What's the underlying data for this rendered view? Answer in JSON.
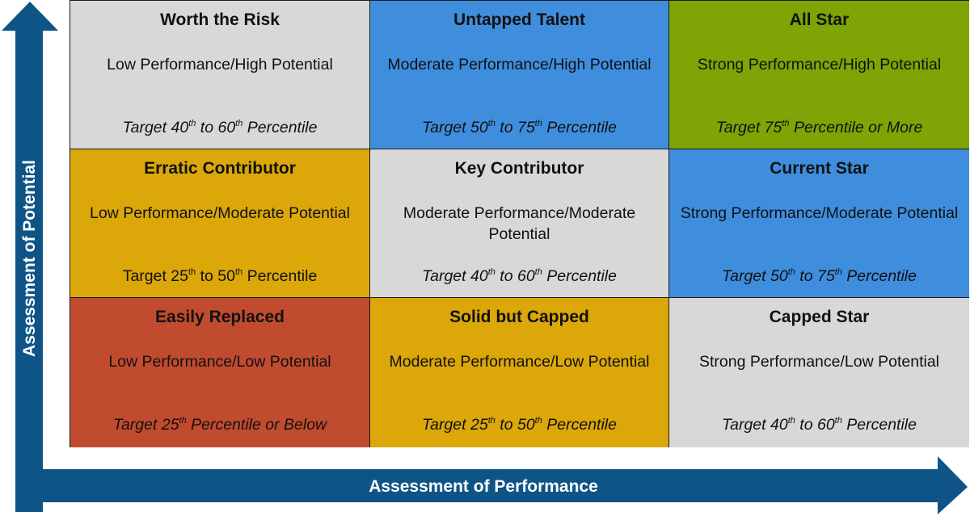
{
  "axes": {
    "y_label": "Assessment of Potential",
    "x_label": "Assessment of Performance",
    "arrow_color": "#0f5487"
  },
  "colors": {
    "gray": "#d8d8d6",
    "blue": "#3f8ede",
    "green": "#7fa405",
    "gold": "#dba709",
    "red": "#c14b2f"
  },
  "cells": [
    {
      "title": "Worth the Risk",
      "desc": "Low Performance/High Potential",
      "target": {
        "t1": "Target 40",
        "s1": "th",
        "t2": " to 60",
        "s2": "th",
        "t3": " Percentile"
      },
      "color": "#d8d8d6",
      "italic": true
    },
    {
      "title": "Untapped Talent",
      "desc": "Moderate Performance/High Potential",
      "target": {
        "t1": "Target 50",
        "s1": "th",
        "t2": " to 75",
        "s2": "th",
        "t3": " Percentile"
      },
      "color": "#3f8ede",
      "italic": true
    },
    {
      "title": "All Star",
      "desc": "Strong Performance/High Potential",
      "target": {
        "t1": "Target 75",
        "s1": "th",
        "t2": " Percentile or More",
        "s2": "",
        "t3": ""
      },
      "color": "#7fa405",
      "italic": true
    },
    {
      "title": "Erratic Contributor",
      "desc": "Low Performance/Moderate Potential",
      "target": {
        "t1": "Target 25",
        "s1": "th",
        "t2": " to 50",
        "s2": "th",
        "t3": " Percentile"
      },
      "color": "#dba709",
      "italic": false
    },
    {
      "title": "Key Contributor",
      "desc": "Moderate Performance/Moderate Potential",
      "target": {
        "t1": "Target 40",
        "s1": "th",
        "t2": " to 60",
        "s2": "th",
        "t3": " Percentile"
      },
      "color": "#d8d8d6",
      "italic": true
    },
    {
      "title": "Current Star",
      "desc": "Strong Performance/Moderate Potential",
      "target": {
        "t1": "Target 50",
        "s1": "th",
        "t2": " to 75",
        "s2": "th",
        "t3": " Percentile"
      },
      "color": "#3f8ede",
      "italic": true
    },
    {
      "title": "Easily Replaced",
      "desc": "Low Performance/Low Potential",
      "target": {
        "t1": "Target 25",
        "s1": "th",
        "t2": " Percentile or Below",
        "s2": "",
        "t3": ""
      },
      "color": "#c14b2f",
      "italic": true
    },
    {
      "title": "Solid but Capped",
      "desc": "Moderate Performance/Low Potential",
      "target": {
        "t1": "Target 25",
        "s1": "th",
        "t2": " to 50",
        "s2": "th",
        "t3": " Percentile"
      },
      "color": "#dba709",
      "italic": true
    },
    {
      "title": "Capped Star",
      "desc": "Strong Performance/Low Potential",
      "target": {
        "t1": "Target 40",
        "s1": "th",
        "t2": " to 60",
        "s2": "th",
        "t3": " Percentile"
      },
      "color": "#d8d8d6",
      "italic": true
    }
  ]
}
